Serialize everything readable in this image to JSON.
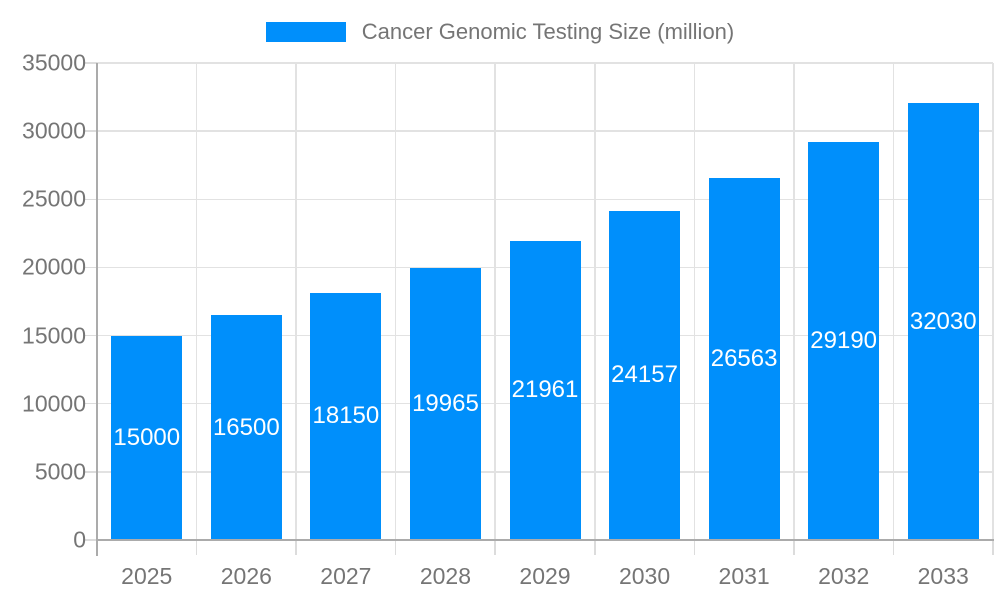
{
  "chart_data": {
    "type": "bar",
    "legend_label": "Cancer Genomic Testing Size (million)",
    "legend_position": "top-center",
    "categories": [
      "2025",
      "2026",
      "2027",
      "2028",
      "2029",
      "2030",
      "2031",
      "2032",
      "2033"
    ],
    "values": [
      15000,
      16500,
      18150,
      19965,
      21961,
      24157,
      26563,
      29190,
      32030
    ],
    "data_labels": [
      "15000",
      "16500",
      "18150",
      "19965",
      "21961",
      "24157",
      "26563",
      "29190",
      "32030"
    ],
    "ylim": [
      0,
      35000
    ],
    "ytick_step": 5000,
    "ytick_labels": [
      "0",
      "5000",
      "10000",
      "15000",
      "20000",
      "25000",
      "30000",
      "35000"
    ],
    "xlabel": "",
    "ylabel": "",
    "grid": true,
    "colors": {
      "bar": "#008FFB",
      "data_label_text": "#ffffff",
      "axis_label_text": "#757575",
      "legend_text": "#757575",
      "gridline": "#e2e2e2",
      "axis_line": "#ababab",
      "tick": "#dcdcdc",
      "background": "#ffffff"
    }
  }
}
